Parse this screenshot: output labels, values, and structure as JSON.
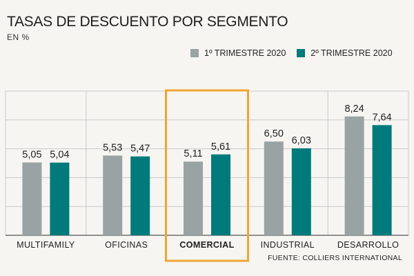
{
  "chart_data": {
    "type": "bar",
    "title": "TASAS DE DESCUENTO POR SEGMENTO",
    "subtitle": "EN %",
    "categories": [
      "MULTIFAMILY",
      "OFICINAS",
      "COMERCIAL",
      "INDUSTRIAL",
      "DESARROLLO"
    ],
    "highlighted_category": "COMERCIAL",
    "series": [
      {
        "name": "1º TRIMESTRE 2020",
        "color": "#9aa3a4",
        "values": [
          5.05,
          5.53,
          5.11,
          6.5,
          8.24
        ],
        "labels": [
          "5,05",
          "5,53",
          "5,11",
          "6,50",
          "8,24"
        ]
      },
      {
        "name": "2º TRIMESTRE 2020",
        "color": "#007a7a",
        "values": [
          5.04,
          5.47,
          5.61,
          6.03,
          7.64
        ],
        "labels": [
          "5,04",
          "5,47",
          "5,61",
          "6,03",
          "7,64"
        ]
      }
    ],
    "ylim": [
      0,
      10
    ],
    "grid": true,
    "legend_position": "top-right",
    "highlight_color": "#f0a530",
    "source": "FUENTE: COLLIERS INTERNATIONAL"
  }
}
